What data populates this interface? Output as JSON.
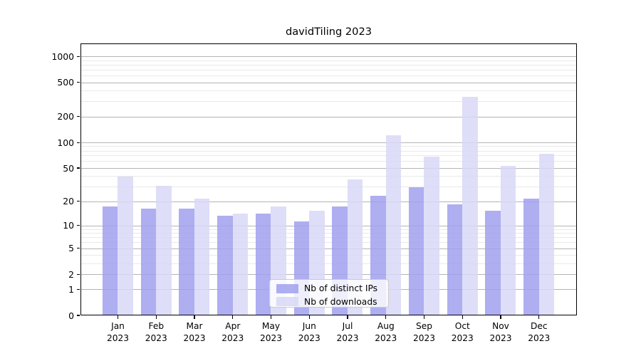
{
  "title": "davidTiling 2023",
  "chart_data": {
    "type": "bar",
    "title": "davidTiling 2023",
    "categories": [
      "Jan 2023",
      "Feb 2023",
      "Mar 2023",
      "Apr 2023",
      "May 2023",
      "Jun 2023",
      "Jul 2023",
      "Aug 2023",
      "Sep 2023",
      "Oct 2023",
      "Nov 2023",
      "Dec 2023"
    ],
    "series": [
      {
        "name": "Nb of distinct IPs",
        "color_hex": "#a0a0ee",
        "alpha": 0.85,
        "values": [
          17,
          16,
          16,
          13,
          14,
          11,
          17,
          23,
          29,
          18,
          15,
          21
        ]
      },
      {
        "name": "Nb of downloads",
        "color_hex": "#d8d8f7",
        "alpha": 0.85,
        "values": [
          39,
          30,
          21,
          14,
          17,
          15,
          36,
          120,
          67,
          335,
          52,
          72
        ]
      }
    ],
    "y_axis": {
      "scale": "log10(1+v)",
      "tick_values": [
        1000,
        500,
        200,
        100,
        50,
        20,
        10,
        5,
        2,
        1,
        0
      ],
      "tick_labels": [
        "1000",
        "500",
        "200",
        "100",
        "50",
        "20",
        "10",
        "5",
        "2",
        "1",
        "0"
      ],
      "minor_values": [
        3,
        4,
        6,
        7,
        8,
        9,
        30,
        40,
        60,
        70,
        80,
        90,
        300,
        400,
        600,
        700,
        800,
        900
      ],
      "top_value": 1420
    },
    "xlabel": "",
    "ylabel": "",
    "grid": true,
    "legend_position": "lower center",
    "legend_items": [
      "Nb of distinct IPs",
      "Nb of downloads"
    ]
  },
  "colors": {
    "background": "#ffffff",
    "spine": "#000000",
    "text": "#000000",
    "major_grid": "#b4b4b4",
    "minor_grid": "#e9e9e9",
    "legend_border": "#cbcbcb",
    "bar_distinct_ips": "#a0a0ee",
    "bar_downloads": "#d8d8f7"
  }
}
